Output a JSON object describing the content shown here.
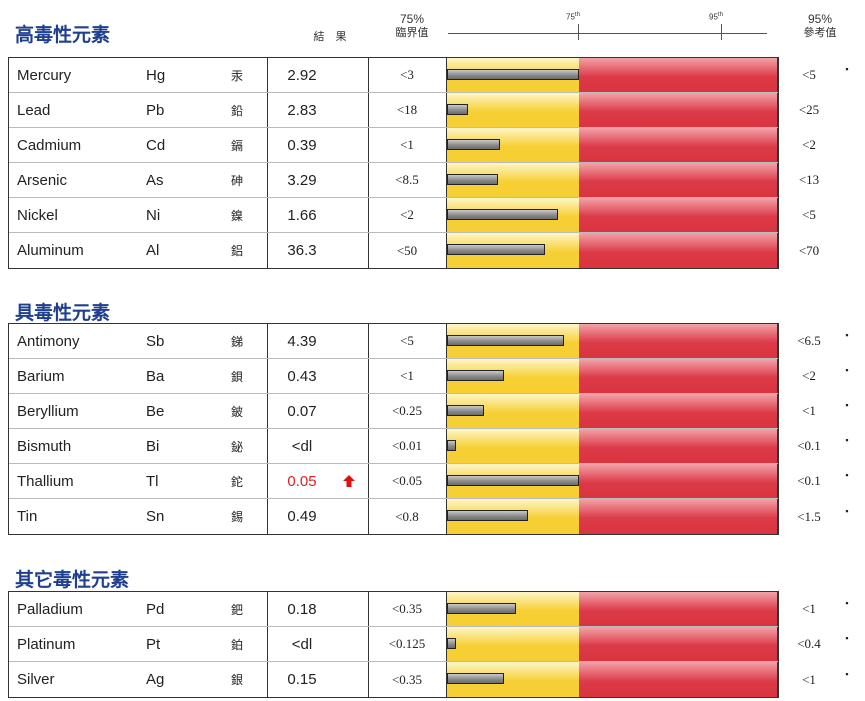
{
  "header": {
    "result_label": "結　果",
    "threshold_pct": "75%",
    "threshold_label": "臨界值",
    "scale_75": "75",
    "scale_95": "95",
    "scale_sup": "th",
    "reference_pct": "95%",
    "reference_label": "參考值"
  },
  "sections": [
    {
      "title": "高毒性元素",
      "rows": [
        {
          "name": "Mercury",
          "symbol": "Hg",
          "zh": "汞",
          "result": "2.92",
          "threshold": "<3",
          "reference": "<5",
          "dot": "▪",
          "level": 1.0
        },
        {
          "name": "Lead",
          "symbol": "Pb",
          "zh": "鉛",
          "result": "2.83",
          "threshold": "<18",
          "reference": "<25",
          "dot": "",
          "level": 0.16
        },
        {
          "name": "Cadmium",
          "symbol": "Cd",
          "zh": "鎘",
          "result": "0.39",
          "threshold": "<1",
          "reference": "<2",
          "dot": "",
          "level": 0.4
        },
        {
          "name": "Arsenic",
          "symbol": "As",
          "zh": "砷",
          "result": "3.29",
          "threshold": "<8.5",
          "reference": "<13",
          "dot": "",
          "level": 0.39
        },
        {
          "name": "Nickel",
          "symbol": "Ni",
          "zh": "鎳",
          "result": "1.66",
          "threshold": "<2",
          "reference": "<5",
          "dot": "",
          "level": 0.84
        },
        {
          "name": "Aluminum",
          "symbol": "Al",
          "zh": "鋁",
          "result": "36.3",
          "threshold": "<50",
          "reference": "<70",
          "dot": "",
          "level": 0.74
        }
      ]
    },
    {
      "title": "具毒性元素",
      "rows": [
        {
          "name": "Antimony",
          "symbol": "Sb",
          "zh": "銻",
          "result": "4.39",
          "threshold": "<5",
          "reference": "<6.5",
          "dot": "▪",
          "level": 0.89
        },
        {
          "name": "Barium",
          "symbol": "Ba",
          "zh": "鋇",
          "result": "0.43",
          "threshold": "<1",
          "reference": "<2",
          "dot": "▪",
          "level": 0.43
        },
        {
          "name": "Beryllium",
          "symbol": "Be",
          "zh": "鈹",
          "result": "0.07",
          "threshold": "<0.25",
          "reference": "<1",
          "dot": "▪",
          "level": 0.28
        },
        {
          "name": "Bismuth",
          "symbol": "Bi",
          "zh": "鉍",
          "result": "<dl",
          "threshold": "<0.01",
          "reference": "<0.1",
          "dot": "▪",
          "level": 0.07
        },
        {
          "name": "Thallium",
          "symbol": "Tl",
          "zh": "鉈",
          "result": "0.05",
          "threshold": "<0.05",
          "reference": "<0.1",
          "dot": "▪",
          "level": 1.0,
          "flag": true
        },
        {
          "name": "Tin",
          "symbol": "Sn",
          "zh": "錫",
          "result": "0.49",
          "threshold": "<0.8",
          "reference": "<1.5",
          "dot": "▪",
          "level": 0.61
        }
      ]
    },
    {
      "title": "其它毒性元素",
      "rows": [
        {
          "name": "Palladium",
          "symbol": "Pd",
          "zh": "鈀",
          "result": "0.18",
          "threshold": "<0.35",
          "reference": "<1",
          "dot": "▪",
          "level": 0.52
        },
        {
          "name": "Platinum",
          "symbol": "Pt",
          "zh": "鉑",
          "result": "<dl",
          "threshold": "<0.125",
          "reference": "<0.4",
          "dot": "▪",
          "level": 0.07
        },
        {
          "name": "Silver",
          "symbol": "Ag",
          "zh": "銀",
          "result": "0.15",
          "threshold": "<0.35",
          "reference": "<1",
          "dot": "▪",
          "level": 0.43
        }
      ]
    }
  ],
  "flag_icon": "up-arrow-icon"
}
